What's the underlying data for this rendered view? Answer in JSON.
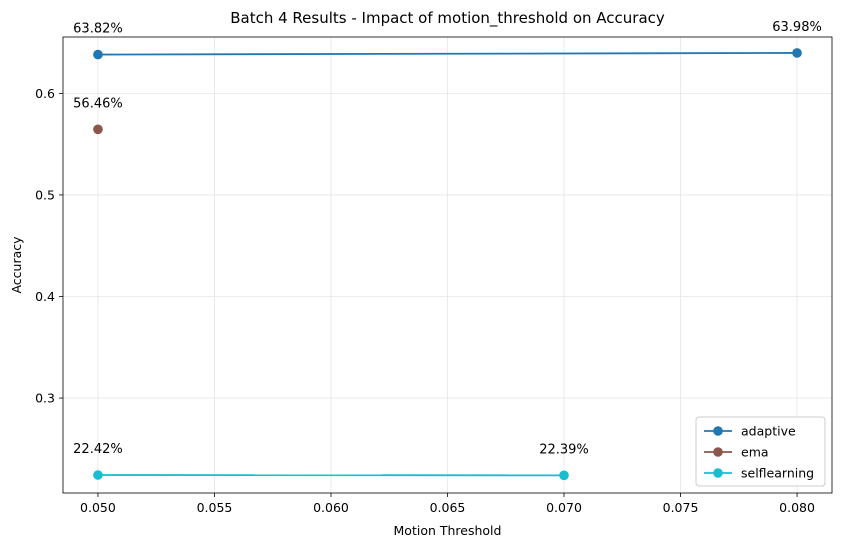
{
  "chart_data": {
    "type": "line",
    "title": "Batch 4 Results - Impact of motion_threshold on Accuracy",
    "xlabel": "Motion Threshold",
    "ylabel": "Accuracy",
    "xlim": [
      0.0485,
      0.0815
    ],
    "ylim": [
      0.2065,
      0.6555
    ],
    "x_ticks": [
      0.05,
      0.055,
      0.06,
      0.065,
      0.07,
      0.075,
      0.08
    ],
    "x_tick_labels": [
      "0.050",
      "0.055",
      "0.060",
      "0.065",
      "0.070",
      "0.075",
      "0.080"
    ],
    "y_ticks": [
      0.3,
      0.4,
      0.5,
      0.6
    ],
    "y_tick_labels": [
      "0.3",
      "0.4",
      "0.5",
      "0.6"
    ],
    "grid": true,
    "legend_position": "bottom-right",
    "series": [
      {
        "name": "adaptive",
        "color": "#1f77b4",
        "x": [
          0.05,
          0.08
        ],
        "y": [
          0.6382,
          0.6398
        ],
        "labels": [
          "63.82%",
          "63.98%"
        ]
      },
      {
        "name": "ema",
        "color": "#8c564b",
        "x": [
          0.05
        ],
        "y": [
          0.5646
        ],
        "labels": [
          "56.46%"
        ]
      },
      {
        "name": "selflearning",
        "color": "#17becf",
        "x": [
          0.05,
          0.07
        ],
        "y": [
          0.2242,
          0.2239
        ],
        "labels": [
          "22.42%",
          "22.39%"
        ]
      }
    ]
  }
}
